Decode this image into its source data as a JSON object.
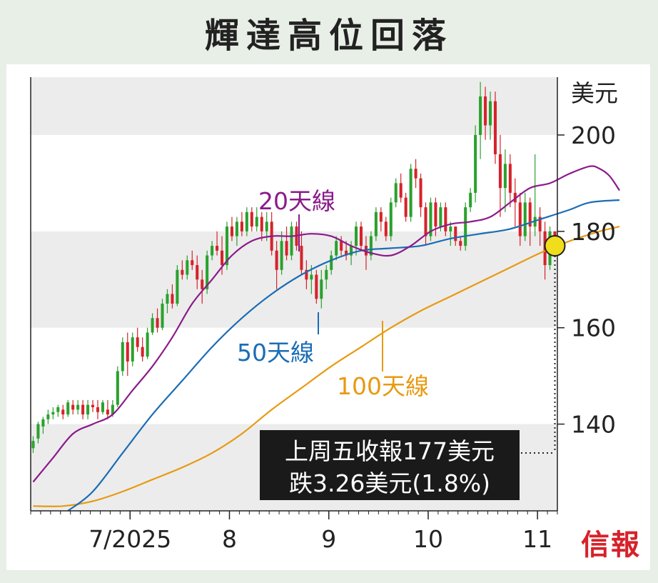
{
  "title": "輝達高位回落",
  "brand": "信報",
  "chart_data": {
    "type": "candlestick",
    "title": "輝達高位回落",
    "ylabel": "美元",
    "ylim": [
      122,
      212
    ],
    "yticks": [
      140,
      160,
      180,
      200
    ],
    "x_ticks": [
      {
        "label": "7/2025",
        "day": 20
      },
      {
        "label": "8",
        "day": 40
      },
      {
        "label": "9",
        "day": 60
      },
      {
        "label": "10",
        "day": 80
      },
      {
        "label": "11",
        "day": 102
      }
    ],
    "series_labels": [
      {
        "name": "20天線",
        "color": "#8b1a8b"
      },
      {
        "name": "50天線",
        "color": "#1b6db5"
      },
      {
        "name": "100天線",
        "color": "#e79a12"
      }
    ],
    "annotation": {
      "line1": "上周五收報177美元",
      "line2": "跌3.26美元(1.8%)"
    },
    "colors": {
      "up": "#2aa12e",
      "down": "#d6222a",
      "ma20": "#8b1a8b",
      "ma50": "#1b6db5",
      "ma100": "#e79a12"
    },
    "ohlc": [
      [
        135,
        137.5,
        134,
        136.5
      ],
      [
        137,
        140.5,
        136,
        140
      ],
      [
        139.5,
        141.5,
        138,
        141
      ],
      [
        141,
        143,
        140,
        142
      ],
      [
        142,
        143.5,
        141,
        142.5
      ],
      [
        142.5,
        144,
        141.5,
        143.5
      ],
      [
        143,
        144,
        141,
        142
      ],
      [
        142,
        145,
        141.5,
        144.5
      ],
      [
        144,
        145,
        142,
        143
      ],
      [
        143,
        145,
        142,
        144
      ],
      [
        144,
        145,
        141,
        142
      ],
      [
        142,
        145,
        141,
        144
      ],
      [
        144,
        145,
        142.5,
        143.5
      ],
      [
        143.5,
        145,
        141,
        142.5
      ],
      [
        142.5,
        145,
        142,
        144.5
      ],
      [
        143,
        145,
        141,
        142
      ],
      [
        142,
        145,
        141.5,
        144
      ],
      [
        144,
        152,
        143.5,
        151
      ],
      [
        151,
        158,
        150,
        157
      ],
      [
        157,
        159,
        150,
        153
      ],
      [
        153,
        159,
        152,
        158
      ],
      [
        158,
        160,
        155,
        156
      ],
      [
        156,
        158,
        153,
        154
      ],
      [
        154,
        160,
        153.5,
        159
      ],
      [
        159,
        163,
        158.5,
        162
      ],
      [
        162,
        164,
        159,
        160
      ],
      [
        160,
        166,
        159.5,
        165
      ],
      [
        165,
        168,
        163,
        167
      ],
      [
        167,
        169,
        164,
        165
      ],
      [
        165,
        173,
        164.5,
        172
      ],
      [
        172,
        174,
        170,
        171
      ],
      [
        171,
        175,
        170,
        174
      ],
      [
        174,
        176,
        172,
        173
      ],
      [
        173,
        175,
        168,
        170
      ],
      [
        170,
        172,
        165,
        168
      ],
      [
        168,
        176,
        167,
        175
      ],
      [
        175,
        178,
        174,
        177
      ],
      [
        177,
        180,
        175,
        176
      ],
      [
        176,
        179,
        171,
        173
      ],
      [
        173,
        182,
        172,
        181
      ],
      [
        181,
        183,
        178,
        179
      ],
      [
        179,
        183,
        177,
        182
      ],
      [
        182,
        184,
        179,
        180
      ],
      [
        180,
        185,
        179,
        184
      ],
      [
        184,
        185,
        180,
        181
      ],
      [
        181,
        185,
        180,
        183
      ],
      [
        183,
        184,
        178,
        180
      ],
      [
        180,
        184,
        178,
        182
      ],
      [
        182,
        184,
        175,
        176
      ],
      [
        176,
        178,
        168,
        172
      ],
      [
        172,
        180,
        171,
        178
      ],
      [
        178,
        181,
        174,
        175
      ],
      [
        175,
        182,
        174,
        181
      ],
      [
        181,
        182,
        176,
        177
      ],
      [
        177,
        180,
        171,
        172
      ],
      [
        172,
        174,
        168,
        170
      ],
      [
        170,
        173,
        167,
        171
      ],
      [
        171,
        172,
        165,
        166
      ],
      [
        166,
        172,
        164,
        170
      ],
      [
        170,
        173,
        168,
        172
      ],
      [
        172,
        176,
        171,
        175
      ],
      [
        175,
        179,
        174,
        178
      ],
      [
        178,
        179,
        175,
        176
      ],
      [
        176,
        178,
        174,
        175
      ],
      [
        175,
        178,
        173,
        177
      ],
      [
        177,
        182,
        175,
        181
      ],
      [
        181,
        182,
        176,
        177
      ],
      [
        177,
        179,
        172,
        175
      ],
      [
        175,
        180,
        174,
        179
      ],
      [
        179,
        185,
        178,
        184
      ],
      [
        184,
        185,
        180,
        182
      ],
      [
        182,
        183,
        178,
        179
      ],
      [
        179,
        187,
        178,
        186
      ],
      [
        186,
        191,
        185,
        190
      ],
      [
        190,
        192,
        186,
        187
      ],
      [
        187,
        188,
        182,
        183
      ],
      [
        183,
        194,
        182,
        193
      ],
      [
        193,
        195,
        189,
        191
      ],
      [
        191,
        192,
        183,
        185
      ],
      [
        185,
        186,
        177,
        179
      ],
      [
        179,
        187,
        178,
        186
      ],
      [
        186,
        187,
        179,
        181
      ],
      [
        181,
        186,
        180,
        185
      ],
      [
        185,
        186,
        179,
        180
      ],
      [
        180,
        182,
        177,
        181
      ],
      [
        181,
        181,
        177,
        178
      ],
      [
        178,
        179,
        176,
        177
      ],
      [
        177,
        186,
        176,
        185
      ],
      [
        185,
        189,
        184,
        188
      ],
      [
        188,
        202,
        186,
        200
      ],
      [
        200,
        211,
        195,
        208
      ],
      [
        208,
        210,
        199,
        202
      ],
      [
        202,
        209,
        199,
        207
      ],
      [
        207,
        209,
        194,
        196
      ],
      [
        196,
        200,
        183,
        189
      ],
      [
        189,
        197,
        184,
        194
      ],
      [
        194,
        196,
        185,
        188
      ],
      [
        188,
        191,
        181,
        186
      ],
      [
        186,
        188,
        177,
        179
      ],
      [
        179,
        188,
        178,
        186
      ],
      [
        186,
        187,
        177,
        181
      ],
      [
        181,
        196,
        179,
        183
      ],
      [
        183,
        185,
        177,
        180
      ],
      [
        180,
        182,
        170,
        173
      ],
      [
        173,
        181,
        172,
        180
      ],
      [
        180,
        180,
        175,
        177
      ]
    ],
    "ma20": [
      [
        0,
        128
      ],
      [
        4,
        133
      ],
      [
        8,
        138
      ],
      [
        12,
        140
      ],
      [
        16,
        142
      ],
      [
        20,
        147
      ],
      [
        24,
        152
      ],
      [
        28,
        158
      ],
      [
        32,
        165
      ],
      [
        36,
        170
      ],
      [
        40,
        175
      ],
      [
        44,
        178
      ],
      [
        48,
        179
      ],
      [
        52,
        179
      ],
      [
        56,
        179.5
      ],
      [
        60,
        179
      ],
      [
        64,
        177
      ],
      [
        68,
        175.5
      ],
      [
        72,
        175
      ],
      [
        76,
        177
      ],
      [
        80,
        180
      ],
      [
        84,
        181.5
      ],
      [
        88,
        182
      ],
      [
        92,
        183
      ],
      [
        96,
        186
      ],
      [
        100,
        189
      ],
      [
        104,
        190
      ],
      [
        108,
        192
      ],
      [
        112,
        193.5
      ],
      [
        114,
        193
      ],
      [
        116,
        191.5
      ],
      [
        118,
        188.5
      ]
    ],
    "ma50": [
      [
        7,
        122
      ],
      [
        12,
        126
      ],
      [
        18,
        134
      ],
      [
        24,
        142
      ],
      [
        30,
        149
      ],
      [
        36,
        156
      ],
      [
        42,
        162
      ],
      [
        48,
        167
      ],
      [
        54,
        171
      ],
      [
        60,
        174
      ],
      [
        66,
        176
      ],
      [
        72,
        176.5
      ],
      [
        78,
        177
      ],
      [
        84,
        178.5
      ],
      [
        90,
        179.5
      ],
      [
        96,
        180.5
      ],
      [
        102,
        182.5
      ],
      [
        108,
        184.5
      ],
      [
        112,
        186
      ],
      [
        118,
        186.5
      ]
    ],
    "ma100": [
      [
        0,
        123
      ],
      [
        6,
        123
      ],
      [
        12,
        124
      ],
      [
        18,
        126
      ],
      [
        24,
        128.5
      ],
      [
        30,
        131
      ],
      [
        36,
        134
      ],
      [
        42,
        138
      ],
      [
        48,
        143
      ],
      [
        54,
        147.5
      ],
      [
        60,
        152
      ],
      [
        66,
        156
      ],
      [
        72,
        160
      ],
      [
        78,
        163.5
      ],
      [
        84,
        166.5
      ],
      [
        90,
        169.5
      ],
      [
        96,
        172.5
      ],
      [
        102,
        175.5
      ],
      [
        108,
        178
      ],
      [
        114,
        180
      ],
      [
        118,
        181
      ]
    ]
  }
}
